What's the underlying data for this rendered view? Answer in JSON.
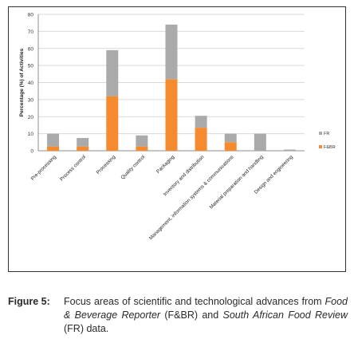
{
  "chart_data": {
    "type": "bar",
    "stacked": true,
    "ylabel": "Percentage (%) of Activities",
    "xlabel": "",
    "ylim": [
      0,
      80
    ],
    "yticks": [
      0,
      10,
      20,
      30,
      40,
      50,
      60,
      70,
      80
    ],
    "grid": true,
    "legend_position": "right",
    "categories": [
      "Pre-processing",
      "Process control",
      "Processing",
      "Quality control",
      "Packaging",
      "Inventory and distribution",
      "Management, information systems & communications",
      "Material preparation and handling",
      "Design and engineering"
    ],
    "series": [
      {
        "name": "F&BR",
        "color": "#F58A2E",
        "values": [
          2.5,
          2.5,
          32,
          2.5,
          42,
          13.5,
          5,
          0,
          0
        ]
      },
      {
        "name": "FR",
        "color": "#AAAAAA",
        "values": [
          7.5,
          5,
          27,
          6.5,
          32,
          7,
          5,
          10,
          0.7
        ]
      }
    ]
  },
  "caption": {
    "label": "Figure 5:",
    "part1": "Focus areas of scientific and technological advances from ",
    "source1": "Food & Beverage Reporter",
    "part2": " (F&BR) and ",
    "source2": "South African Food Review",
    "part3": " (FR) data."
  }
}
